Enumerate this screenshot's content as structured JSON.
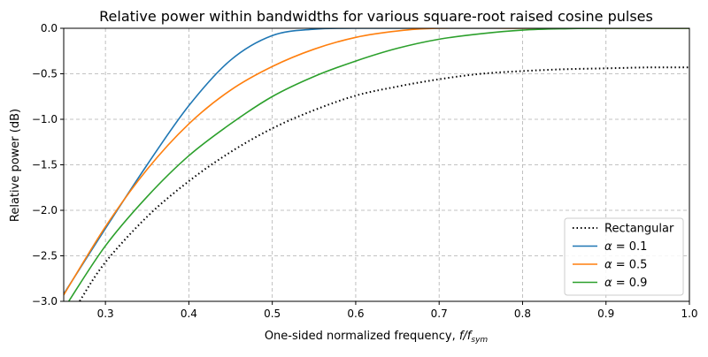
{
  "chart_data": {
    "type": "line",
    "title": "Relative power within bandwidths for various square-root raised cosine pulses",
    "xlabel": "One-sided normalized frequency, f/f_sym",
    "xlabel_main": "One-sided normalized frequency, ",
    "xlabel_f": "f",
    "xlabel_sub_over": "/f",
    "xlabel_sub": "sym",
    "ylabel": "Relative power (dB)",
    "xlim": [
      0.25,
      1.0
    ],
    "ylim": [
      -3.0,
      0.0
    ],
    "xticks": [
      0.3,
      0.4,
      0.5,
      0.6,
      0.7,
      0.8,
      0.9,
      1.0
    ],
    "xtick_labels": [
      "0.3",
      "0.4",
      "0.5",
      "0.6",
      "0.7",
      "0.8",
      "0.9",
      "1.0"
    ],
    "yticks": [
      0.0,
      -0.5,
      -1.0,
      -1.5,
      -2.0,
      -2.5,
      -3.0
    ],
    "ytick_labels": [
      "0.0",
      "−0.5",
      "−1.0",
      "−1.5",
      "−2.0",
      "−2.5",
      "−3.0"
    ],
    "grid": true,
    "legend_position": "bottom-right",
    "series": [
      {
        "name": "Rectangular",
        "label": "Rectangular",
        "color": "#000000",
        "style": "dotted",
        "x": [
          0.26,
          0.269,
          0.3,
          0.35,
          0.4,
          0.45,
          0.5,
          0.55,
          0.6,
          0.65,
          0.7,
          0.75,
          0.8,
          0.85,
          0.9,
          0.95,
          1.0
        ],
        "y": [
          -3.15,
          -3.0,
          -2.57,
          -2.07,
          -1.68,
          -1.36,
          -1.1,
          -0.9,
          -0.74,
          -0.64,
          -0.56,
          -0.5,
          -0.47,
          -0.45,
          -0.44,
          -0.43,
          -0.43
        ]
      },
      {
        "name": "alpha=0.1",
        "label_prefix": "α",
        "label": " = 0.1",
        "color": "#1f77b4",
        "style": "solid",
        "x": [
          0.25,
          0.3,
          0.35,
          0.4,
          0.45,
          0.5,
          0.55,
          0.6,
          0.7,
          0.8,
          0.9,
          1.0
        ],
        "y": [
          -2.92,
          -2.2,
          -1.5,
          -0.85,
          -0.35,
          -0.08,
          -0.01,
          0,
          0,
          0,
          0,
          0
        ]
      },
      {
        "name": "alpha=0.5",
        "label_prefix": "α",
        "label": " = 0.5",
        "color": "#ff7f0e",
        "style": "solid",
        "x": [
          0.25,
          0.3,
          0.35,
          0.4,
          0.45,
          0.5,
          0.55,
          0.6,
          0.65,
          0.7,
          0.8,
          0.9,
          1.0
        ],
        "y": [
          -2.93,
          -2.18,
          -1.55,
          -1.05,
          -0.68,
          -0.42,
          -0.23,
          -0.1,
          -0.03,
          0,
          0,
          0,
          0
        ]
      },
      {
        "name": "alpha=0.9",
        "label_prefix": "α",
        "label": " = 0.9",
        "color": "#2ca02c",
        "style": "solid",
        "x": [
          0.256,
          0.3,
          0.35,
          0.4,
          0.45,
          0.5,
          0.55,
          0.6,
          0.65,
          0.7,
          0.75,
          0.8,
          0.85,
          0.9,
          1.0
        ],
        "y": [
          -3.0,
          -2.39,
          -1.85,
          -1.4,
          -1.05,
          -0.75,
          -0.53,
          -0.36,
          -0.22,
          -0.12,
          -0.06,
          -0.02,
          -0.005,
          0,
          0
        ]
      }
    ]
  }
}
